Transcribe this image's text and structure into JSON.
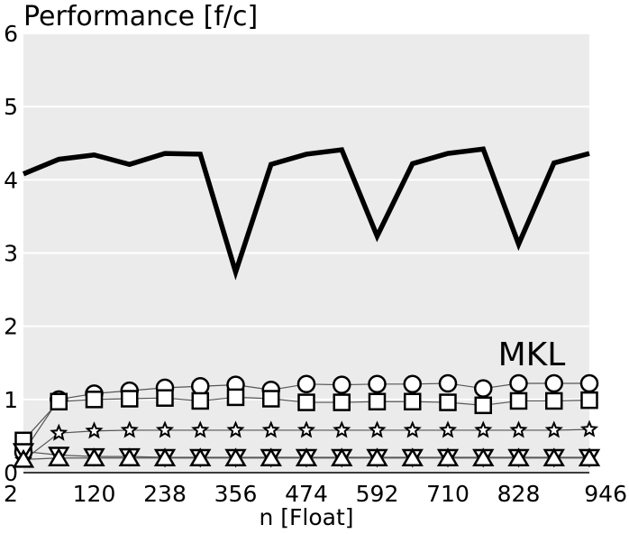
{
  "chart_data": {
    "type": "line",
    "title": "Performance [f/c]",
    "xlabel": "n [Float]",
    "ylabel": "",
    "xlim": [
      2,
      946
    ],
    "ylim": [
      0,
      6
    ],
    "xticks": [
      2,
      120,
      238,
      356,
      474,
      592,
      710,
      828,
      946
    ],
    "yticks": [
      0,
      1,
      2,
      3,
      4,
      5,
      6
    ],
    "grid": true,
    "background": "#ebebeb",
    "annotation": "MKL",
    "x": [
      2,
      61,
      120,
      179,
      238,
      297,
      356,
      415,
      474,
      533,
      592,
      651,
      710,
      769,
      828,
      887,
      946
    ],
    "series": [
      {
        "marker": "none",
        "values": [
          4.08,
          4.28,
          4.34,
          4.21,
          4.36,
          4.35,
          2.74,
          4.21,
          4.35,
          4.41,
          3.23,
          4.22,
          4.36,
          4.42,
          3.12,
          4.23,
          4.36
        ]
      },
      {
        "marker": "circle",
        "values": [
          0.28,
          1.0,
          1.08,
          1.12,
          1.16,
          1.18,
          1.2,
          1.13,
          1.21,
          1.2,
          1.21,
          1.21,
          1.22,
          1.15,
          1.22,
          1.22,
          1.22
        ]
      },
      {
        "marker": "square",
        "values": [
          0.44,
          0.97,
          1.0,
          1.01,
          1.02,
          0.98,
          1.03,
          1.01,
          0.96,
          0.96,
          0.97,
          0.97,
          0.96,
          0.92,
          0.98,
          0.98,
          0.99
        ]
      },
      {
        "marker": "star",
        "values": [
          0.17,
          0.54,
          0.57,
          0.58,
          0.58,
          0.58,
          0.58,
          0.58,
          0.58,
          0.58,
          0.58,
          0.58,
          0.58,
          0.58,
          0.58,
          0.58,
          0.59
        ]
      },
      {
        "marker": "triangle-down",
        "values": [
          0.29,
          0.24,
          0.22,
          0.22,
          0.21,
          0.21,
          0.21,
          0.21,
          0.21,
          0.21,
          0.21,
          0.21,
          0.21,
          0.21,
          0.21,
          0.21,
          0.21
        ]
      },
      {
        "marker": "triangle-up",
        "values": [
          0.18,
          0.2,
          0.2,
          0.2,
          0.2,
          0.2,
          0.2,
          0.2,
          0.2,
          0.2,
          0.2,
          0.2,
          0.2,
          0.2,
          0.2,
          0.2,
          0.2
        ]
      }
    ]
  }
}
